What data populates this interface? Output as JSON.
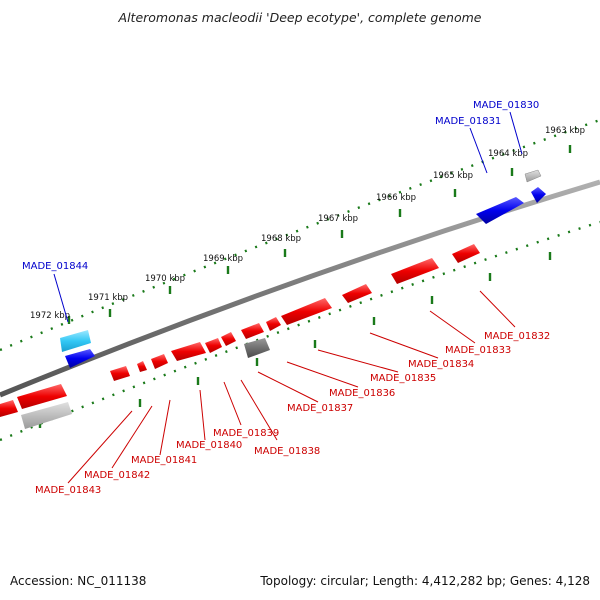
{
  "title": "Alteromonas macleodii 'Deep ecotype', complete genome",
  "footer": {
    "accession": "Accession: NC_011138",
    "stats": "Topology: circular; Length: 4,412,282 bp; Genes: 4,128"
  },
  "colors": {
    "forward_gene": "#ff0000",
    "reverse_gene": "#ff0000",
    "forward_label": "#0000cc",
    "reverse_label": "#cc0000",
    "backbone": "#808080",
    "tick": "#1a7a1a"
  },
  "kbp_ticks": [
    "1963 kbp",
    "1964 kbp",
    "1965 kbp",
    "1966 kbp",
    "1967 kbp",
    "1968 kbp",
    "1969 kbp",
    "1970 kbp",
    "1971 kbp",
    "1972 kbp"
  ],
  "upper_labels": [
    "MADE_01830",
    "MADE_01831",
    "MADE_01844"
  ],
  "lower_labels": [
    "MADE_01832",
    "MADE_01833",
    "MADE_01834",
    "MADE_01835",
    "MADE_01836",
    "MADE_01837",
    "MADE_01838",
    "MADE_01839",
    "MADE_01840",
    "MADE_01841",
    "MADE_01842",
    "MADE_01843"
  ]
}
